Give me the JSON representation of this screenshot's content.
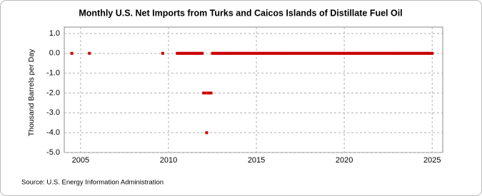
{
  "chart_data": {
    "type": "scatter",
    "title": "Monthly U.S. Net Imports from Turks and Caicos Islands of Distillate Fuel Oil",
    "y_label": "Thousand Barrels per Day",
    "source": "Source: U.S. Energy Information Administration",
    "color": "#cc0000",
    "grid": true,
    "xlim": [
      2004.07,
      2025.6
    ],
    "xticks": [
      2005,
      2010,
      2015,
      2020,
      2025
    ],
    "ylim": [
      -5,
      1
    ],
    "yticks": [
      {
        "value": 1,
        "label": "1.0"
      },
      {
        "value": 0,
        "label": "0.0"
      },
      {
        "value": -1,
        "label": "-1.0"
      },
      {
        "value": -2,
        "label": "-2.0"
      },
      {
        "value": -3,
        "label": "-3.0"
      },
      {
        "value": -4,
        "label": "-4.0"
      },
      {
        "value": -5,
        "label": "-5.0"
      }
    ],
    "x": [
      2004.5,
      2005.5,
      2009.67,
      2010.5,
      2010.58,
      2010.67,
      2010.75,
      2010.83,
      2010.92,
      2011.0,
      2011.08,
      2011.17,
      2011.25,
      2011.33,
      2011.42,
      2011.5,
      2011.58,
      2011.67,
      2011.75,
      2011.83,
      2011.92,
      2012.0,
      2012.08,
      2012.17,
      2012.25,
      2012.33,
      2012.42,
      2012.5,
      2012.58,
      2012.67,
      2012.75,
      2012.83,
      2012.92,
      2013.0,
      2013.08,
      2013.17,
      2013.25,
      2013.33,
      2013.42,
      2013.5,
      2013.58,
      2013.67,
      2013.75,
      2013.83,
      2013.92,
      2014.0,
      2014.08,
      2014.17,
      2014.25,
      2014.33,
      2014.42,
      2014.5,
      2014.58,
      2014.67,
      2014.75,
      2014.83,
      2014.92,
      2015.0,
      2015.08,
      2015.17,
      2015.25,
      2015.33,
      2015.42,
      2015.5,
      2015.58,
      2015.67,
      2015.75,
      2015.83,
      2015.92,
      2016.0,
      2016.08,
      2016.17,
      2016.25,
      2016.33,
      2016.42,
      2016.5,
      2016.58,
      2016.67,
      2016.75,
      2016.83,
      2016.92,
      2017.0,
      2017.08,
      2017.17,
      2017.25,
      2017.33,
      2017.42,
      2017.5,
      2017.58,
      2017.67,
      2017.75,
      2017.83,
      2017.92,
      2018.0,
      2018.08,
      2018.17,
      2018.25,
      2018.33,
      2018.42,
      2018.5,
      2018.58,
      2018.67,
      2018.75,
      2018.83,
      2018.92,
      2019.0,
      2019.08,
      2019.17,
      2019.25,
      2019.33,
      2019.42,
      2019.5,
      2019.58,
      2019.67,
      2019.75,
      2019.83,
      2019.92,
      2020.0,
      2020.08,
      2020.17,
      2020.25,
      2020.33,
      2020.42,
      2020.5,
      2020.58,
      2020.67,
      2020.75,
      2020.83,
      2020.92,
      2021.0,
      2021.08,
      2021.17,
      2021.25,
      2021.33,
      2021.42,
      2021.5,
      2021.58,
      2021.67,
      2021.75,
      2021.83,
      2021.92,
      2022.0,
      2022.08,
      2022.17,
      2022.25,
      2022.33,
      2022.42,
      2022.5,
      2022.58,
      2022.67,
      2022.75,
      2022.83,
      2022.92,
      2023.0,
      2023.08,
      2023.17,
      2023.25,
      2023.33,
      2023.42,
      2023.5,
      2023.58,
      2023.67,
      2023.75,
      2023.83,
      2023.92,
      2024.0,
      2024.08,
      2024.17,
      2024.25,
      2024.33,
      2024.42,
      2024.5,
      2024.58,
      2024.67,
      2024.75,
      2024.83,
      2024.92,
      2025.0
    ],
    "values": [
      0,
      0,
      0,
      0,
      0,
      0,
      0,
      0,
      0,
      0,
      0,
      0,
      0,
      0,
      0,
      0,
      0,
      0,
      0,
      0,
      0,
      -2,
      -2,
      -4,
      -2,
      -2,
      -2,
      0,
      0,
      0,
      0,
      0,
      0,
      0,
      0,
      0,
      0,
      0,
      0,
      0,
      0,
      0,
      0,
      0,
      0,
      0,
      0,
      0,
      0,
      0,
      0,
      0,
      0,
      0,
      0,
      0,
      0,
      0,
      0,
      0,
      0,
      0,
      0,
      0,
      0,
      0,
      0,
      0,
      0,
      0,
      0,
      0,
      0,
      0,
      0,
      0,
      0,
      0,
      0,
      0,
      0,
      0,
      0,
      0,
      0,
      0,
      0,
      0,
      0,
      0,
      0,
      0,
      0,
      0,
      0,
      0,
      0,
      0,
      0,
      0,
      0,
      0,
      0,
      0,
      0,
      0,
      0,
      0,
      0,
      0,
      0,
      0,
      0,
      0,
      0,
      0,
      0,
      0,
      0,
      0,
      0,
      0,
      0,
      0,
      0,
      0,
      0,
      0,
      0,
      0,
      0,
      0,
      0,
      0,
      0,
      0,
      0,
      0,
      0,
      0,
      0,
      0,
      0,
      0,
      0,
      0,
      0,
      0,
      0,
      0,
      0,
      0,
      0,
      0,
      0,
      0,
      0,
      0,
      0,
      0,
      0,
      0,
      0,
      0,
      0,
      0,
      0,
      0,
      0,
      0,
      0,
      0,
      0,
      0,
      0,
      0,
      0,
      0
    ]
  }
}
